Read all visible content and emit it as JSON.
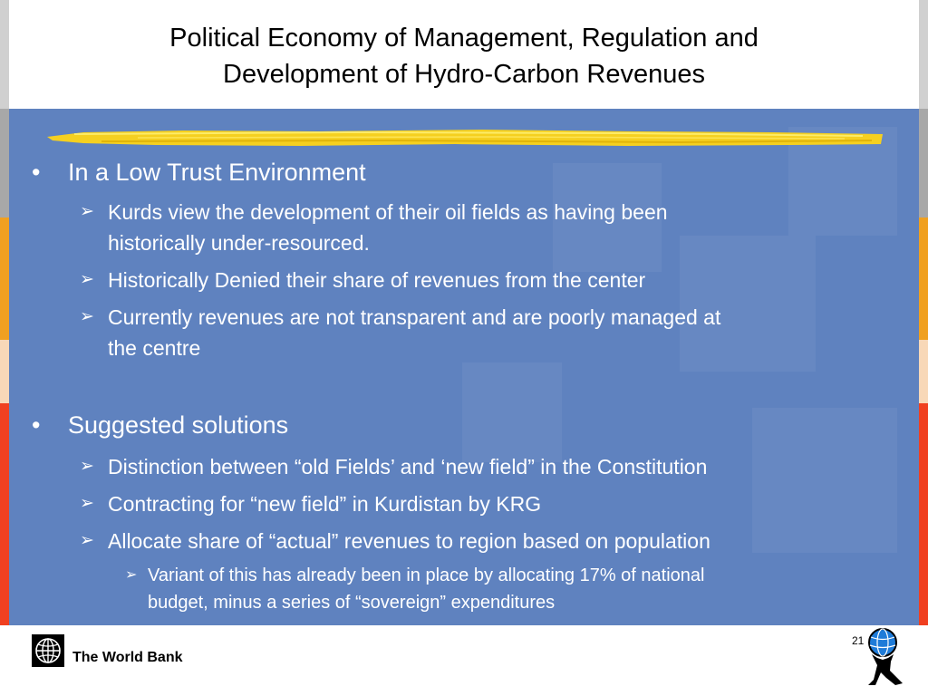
{
  "slide": {
    "title_line1": "Political Economy of Management, Regulation and",
    "title_line2": "Development of Hydro-Carbon Revenues",
    "bullet_char": "•",
    "arrow_char": "➢",
    "sections": [
      {
        "heading": "In a Low Trust Environment",
        "items": [
          {
            "line1": "Kurds view the development of their oil fields as having been",
            "line2": "historically under-resourced."
          },
          {
            "line1": "Historically Denied their share of revenues from the center"
          },
          {
            "line1": "Currently revenues are not transparent and are poorly managed at",
            "line2": "the centre"
          }
        ]
      },
      {
        "heading": "Suggested solutions",
        "items": [
          {
            "line1": "Distinction between “old Fields’ and ‘new field” in the Constitution"
          },
          {
            "line1": "Contracting for “new field” in Kurdistan by KRG"
          },
          {
            "line1": "Allocate share of “actual” revenues to region based on population"
          }
        ],
        "sub_items": [
          {
            "line1": "Variant of this has already been in place by allocating 17% of national",
            "line2": "budget, minus a series of “sovereign” expenditures"
          }
        ]
      }
    ]
  },
  "footer": {
    "organization": "The World Bank",
    "page_number": "21"
  },
  "colors": {
    "content_background": "#5f82bf",
    "brush_stroke": "#f5d020",
    "text_on_blue": "#ffffff"
  }
}
